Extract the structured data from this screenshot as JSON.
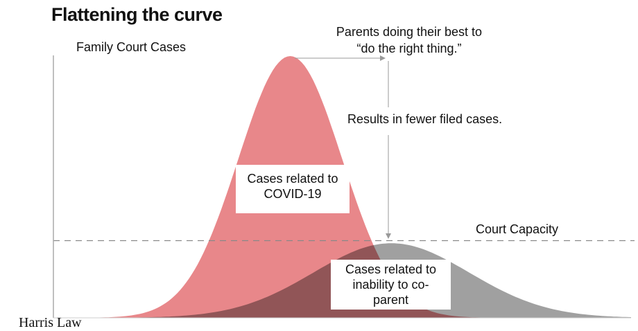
{
  "title": "Flattening the curve",
  "y_axis_label": "Family Court Cases",
  "annotations": {
    "top_note_line1": "Parents doing their best to",
    "top_note_line2": "“do the right thing.”",
    "side_note": "Results in fewer filed cases.",
    "capacity_label": "Court Capacity",
    "covid_box_line1": "Cases related to",
    "covid_box_line2": "COVID-19",
    "coparent_box_line1": "Cases related to",
    "coparent_box_line2": "inability to co-",
    "coparent_box_line3": "parent"
  },
  "brand": "Harris Law",
  "chart_data": {
    "type": "area",
    "title": "Flattening the curve",
    "ylabel": "Family Court Cases",
    "xlabel": "",
    "xlim": [
      0,
      100
    ],
    "ylim": [
      0,
      100
    ],
    "series": [
      {
        "name": "Cases related to COVID-19",
        "shape": "bell",
        "center": 41,
        "spread": 9,
        "peak": 100,
        "color": "#e8878a"
      },
      {
        "name": "Cases related to inability to co-parent",
        "shape": "bell",
        "center": 58.5,
        "spread": 13.5,
        "peak": 28.5,
        "color": "#a0a0a0"
      }
    ],
    "reference_lines": [
      {
        "name": "Court Capacity",
        "y": 29.5,
        "style": "dashed"
      }
    ]
  }
}
